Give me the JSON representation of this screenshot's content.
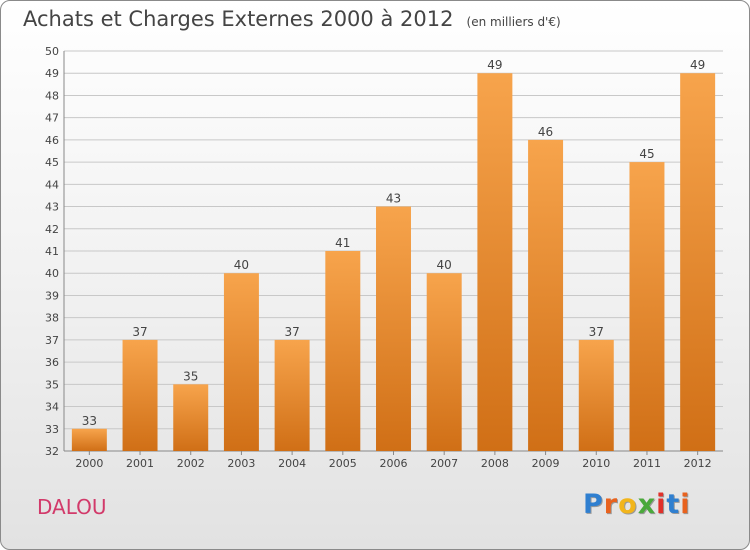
{
  "header": {
    "title": "Achats et Charges Externes 2000 à 2012",
    "unit": "(en milliers d'€)"
  },
  "footer": {
    "commune": "DALOU",
    "logo_text": "Proxiti",
    "logo_letters": [
      {
        "ch": "P",
        "color": "#2f7fd0"
      },
      {
        "ch": "r",
        "color": "#e8621e"
      },
      {
        "ch": "o",
        "color": "#f2b51b"
      },
      {
        "ch": "x",
        "color": "#4aa93b"
      },
      {
        "ch": "i",
        "color": "#e0302a"
      },
      {
        "ch": "t",
        "color": "#2f7fd0"
      },
      {
        "ch": "i",
        "color": "#e8621e"
      }
    ]
  },
  "colors": {
    "bar_light": "#f7a44c",
    "bar_dark": "#d06f16",
    "grid": "#c8c8c8",
    "axis": "#888888",
    "text": "#444444"
  },
  "chart_data": {
    "type": "bar",
    "title": "Achats et Charges Externes 2000 à 2012",
    "subtitle": "(en milliers d'€)",
    "categories": [
      "2000",
      "2001",
      "2002",
      "2003",
      "2004",
      "2005",
      "2006",
      "2007",
      "2008",
      "2009",
      "2010",
      "2011",
      "2012"
    ],
    "values": [
      33,
      37,
      35,
      40,
      37,
      41,
      43,
      40,
      49,
      46,
      37,
      45,
      49
    ],
    "ylim": [
      32,
      50
    ],
    "yticks": [
      32,
      33,
      34,
      35,
      36,
      37,
      38,
      39,
      40,
      41,
      42,
      43,
      44,
      45,
      46,
      47,
      48,
      49,
      50
    ],
    "grid": true,
    "data_labels": true
  }
}
